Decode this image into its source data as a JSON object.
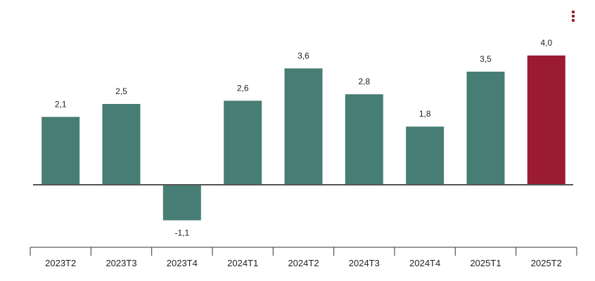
{
  "colors": {
    "bar": "#467d74",
    "highlight": "#9b1b32",
    "axis": "#333333",
    "baseline": "#555555",
    "menu": "#9b1b32"
  },
  "menu": {
    "icon": "vertical-dots-menu-icon"
  },
  "chart_data": {
    "type": "bar",
    "categories": [
      "2023T2",
      "2023T3",
      "2023T4",
      "2024T1",
      "2024T2",
      "2024T3",
      "2024T4",
      "2025T1",
      "2025T2"
    ],
    "values": [
      2.1,
      2.5,
      -1.1,
      2.6,
      3.6,
      2.8,
      1.8,
      3.5,
      4.0
    ],
    "value_labels": [
      "2,1",
      "2,5",
      "-1,1",
      "2,6",
      "3,6",
      "2,8",
      "1,8",
      "3,5",
      "4,0"
    ],
    "highlight_index": 8,
    "ylim": [
      -1.8,
      4.6
    ],
    "grid": false,
    "legend": "none"
  }
}
